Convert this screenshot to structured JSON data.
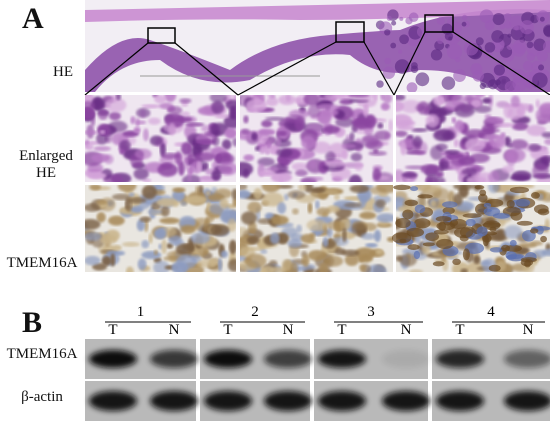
{
  "panel_a": {
    "label": "A",
    "row_labels": [
      "HE",
      "Enlarged HE",
      "TMEM16A"
    ]
  },
  "panel_b": {
    "label": "B",
    "groups": [
      {
        "number": "1",
        "lanes": [
          "T",
          "N"
        ]
      },
      {
        "number": "2",
        "lanes": [
          "T",
          "N"
        ]
      },
      {
        "number": "3",
        "lanes": [
          "T",
          "N"
        ]
      },
      {
        "number": "4",
        "lanes": [
          "T",
          "N"
        ]
      }
    ],
    "row_labels": [
      "TMEM16A",
      "β-actin"
    ]
  }
}
